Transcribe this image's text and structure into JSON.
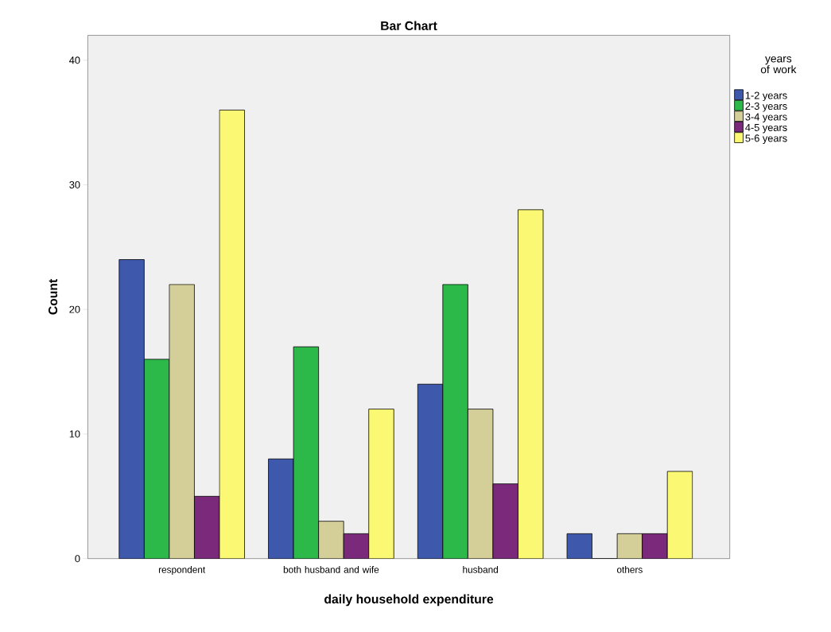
{
  "chart_data": {
    "type": "bar",
    "title": "Bar Chart",
    "xlabel": "daily household expenditure",
    "ylabel": "Count",
    "legend_title": "years of work",
    "categories": [
      "respondent",
      "both husband and wife",
      "husband",
      "others"
    ],
    "series": [
      {
        "name": "1-2 years",
        "color": "#3e58ac",
        "values": [
          24,
          8,
          14,
          2
        ]
      },
      {
        "name": "2-3 years",
        "color": "#2db84a",
        "values": [
          16,
          17,
          22,
          0
        ]
      },
      {
        "name": "3-4 years",
        "color": "#d4cf98",
        "values": [
          22,
          3,
          12,
          2
        ]
      },
      {
        "name": "4-5 years",
        "color": "#7b2a7b",
        "values": [
          5,
          2,
          6,
          2
        ]
      },
      {
        "name": "5-6 years",
        "color": "#fbf873",
        "values": [
          36,
          12,
          28,
          7
        ]
      }
    ],
    "ylim": [
      0,
      42
    ],
    "yticks": [
      0,
      10,
      20,
      30,
      40
    ],
    "grid": false,
    "legend": "top right"
  }
}
